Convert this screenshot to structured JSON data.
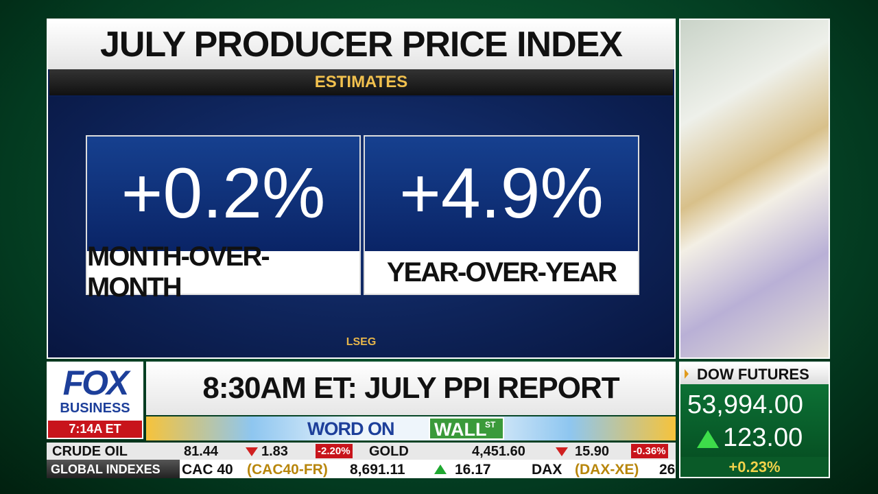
{
  "graphic": {
    "title": "JULY PRODUCER PRICE INDEX",
    "subtitle": "ESTIMATES",
    "cards": [
      {
        "value": "+0.2%",
        "label": "MONTH-OVER-MONTH"
      },
      {
        "value": "+4.9%",
        "label": "YEAR-OVER-YEAR"
      }
    ],
    "source": "LSEG"
  },
  "logo": {
    "brand": "FOX",
    "division": "BUSINESS",
    "time": "7:14A ET"
  },
  "headline": "8:30AM ET: JULY PPI REPORT",
  "banner": {
    "left": "WORD ON",
    "right": "WALL",
    "superscript": "ST"
  },
  "ticker": {
    "row1": [
      {
        "name": "CRUDE OIL",
        "price": "81.44",
        "change": "1.83",
        "percent": "-2.20%"
      },
      {
        "name": "GOLD",
        "price": "4,451.60",
        "change": "15.90",
        "percent": "-0.36%"
      }
    ],
    "row2": {
      "label": "GLOBAL INDEXES",
      "items": [
        {
          "name": "CAC 40",
          "symbol": "(CAC40-FR)",
          "price": "8,691.11",
          "change": "16.17"
        },
        {
          "name": "DAX",
          "symbol": "(DAX-XE)",
          "price": "26"
        }
      ]
    }
  },
  "dow": {
    "title": "DOW FUTURES",
    "price": "53,994.00",
    "change": "123.00",
    "percent": "+0.23%"
  }
}
